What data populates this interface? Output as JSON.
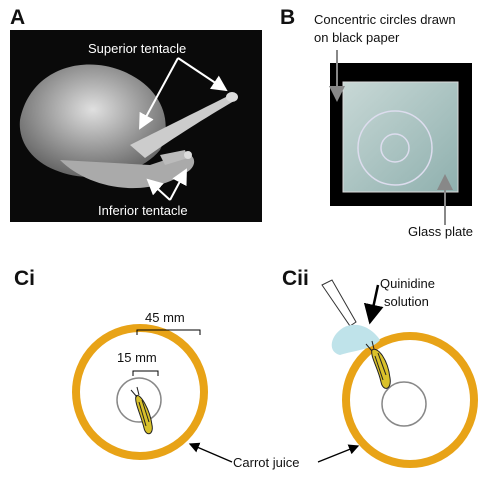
{
  "panels": {
    "a": {
      "label": "A",
      "superior": "Superior tentacle",
      "inferior": "Inferior tentacle"
    },
    "b": {
      "label": "B",
      "circles": [
        "Concentric circles drawn",
        "on black paper"
      ],
      "plate": "Glass plate"
    },
    "ci": {
      "label": "Ci",
      "outer": "45 mm",
      "inner": "15 mm"
    },
    "cii": {
      "label": "Cii",
      "solution": [
        "Quinidine",
        "solution"
      ]
    },
    "shared": {
      "juice": "Carrot juice"
    }
  }
}
